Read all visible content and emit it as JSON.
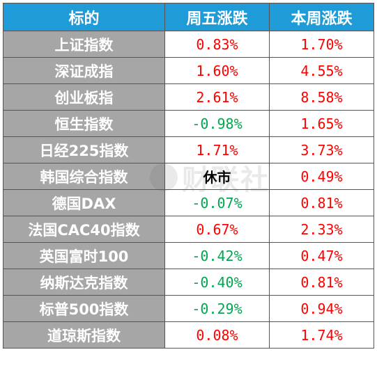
{
  "headers": {
    "col1": "标的",
    "col2": "周五涨跌",
    "col3": "本周涨跌"
  },
  "rows": [
    {
      "name": "上证指数",
      "fri": "0.83%",
      "fri_dir": "up",
      "week": "1.70%",
      "week_dir": "up"
    },
    {
      "name": "深证成指",
      "fri": "1.60%",
      "fri_dir": "up",
      "week": "4.55%",
      "week_dir": "up"
    },
    {
      "name": "创业板指",
      "fri": "2.61%",
      "fri_dir": "up",
      "week": "8.58%",
      "week_dir": "up"
    },
    {
      "name": "恒生指数",
      "fri": "-0.98%",
      "fri_dir": "down",
      "week": "1.65%",
      "week_dir": "up"
    },
    {
      "name": "日经225指数",
      "fri": "1.71%",
      "fri_dir": "up",
      "week": "3.73%",
      "week_dir": "up"
    },
    {
      "name": "韩国综合指数",
      "fri": "休市",
      "fri_dir": "closed",
      "week": "0.49%",
      "week_dir": "up"
    },
    {
      "name": "德国DAX",
      "fri": "-0.07%",
      "fri_dir": "down",
      "week": "0.81%",
      "week_dir": "up"
    },
    {
      "name": "法国CAC40指数",
      "fri": "0.67%",
      "fri_dir": "up",
      "week": "2.33%",
      "week_dir": "up"
    },
    {
      "name": "英国富时100",
      "fri": "-0.42%",
      "fri_dir": "down",
      "week": "0.47%",
      "week_dir": "up"
    },
    {
      "name": "纳斯达克指数",
      "fri": "-0.40%",
      "fri_dir": "down",
      "week": "0.81%",
      "week_dir": "up"
    },
    {
      "name": "标普500指数",
      "fri": "-0.29%",
      "fri_dir": "down",
      "week": "0.94%",
      "week_dir": "up"
    },
    {
      "name": "道琼斯指数",
      "fri": "0.08%",
      "fri_dir": "up",
      "week": "1.74%",
      "week_dir": "up"
    }
  ],
  "watermark": "财联社",
  "colors": {
    "header_bg": "#1f9bd7",
    "name_bg": "#a6a6a6",
    "up": "#ff0000",
    "down": "#00a650"
  }
}
